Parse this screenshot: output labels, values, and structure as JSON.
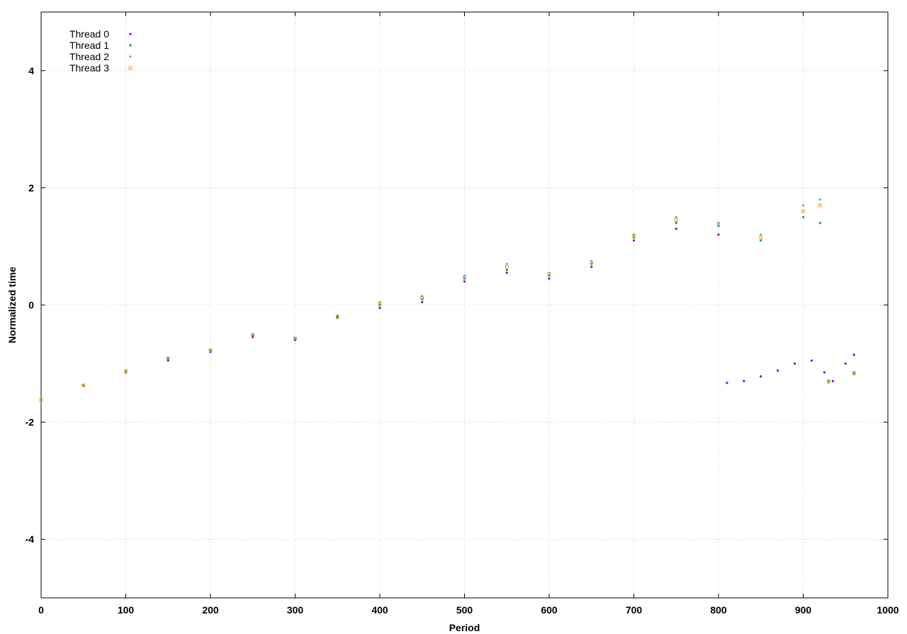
{
  "chart_data": {
    "type": "scatter",
    "title": "",
    "xlabel": "Period",
    "ylabel": "Normalized time",
    "xlim": [
      0,
      1000
    ],
    "ylim": [
      -5,
      5
    ],
    "x_ticks": [
      0,
      100,
      200,
      300,
      400,
      500,
      600,
      700,
      800,
      900,
      1000
    ],
    "y_ticks": [
      -4,
      -2,
      0,
      2,
      4
    ],
    "grid": true,
    "legend_position": "top-left",
    "series": [
      {
        "name": "Thread 0",
        "color": "#9400d3",
        "marker": "dot",
        "points": [
          [
            0,
            -1.62
          ],
          [
            50,
            -1.38
          ],
          [
            100,
            -1.15
          ],
          [
            150,
            -0.95
          ],
          [
            200,
            -0.8
          ],
          [
            250,
            -0.55
          ],
          [
            300,
            -0.6
          ],
          [
            350,
            -0.2
          ],
          [
            400,
            -0.05
          ],
          [
            450,
            0.05
          ],
          [
            500,
            0.4
          ],
          [
            550,
            0.55
          ],
          [
            600,
            0.45
          ],
          [
            650,
            0.65
          ],
          [
            700,
            1.1
          ],
          [
            750,
            1.3
          ],
          [
            800,
            1.2
          ],
          [
            810,
            -1.33
          ],
          [
            830,
            -1.3
          ],
          [
            850,
            -1.22
          ],
          [
            870,
            -1.12
          ],
          [
            890,
            -1.0
          ],
          [
            910,
            -0.95
          ],
          [
            925,
            -1.15
          ],
          [
            935,
            -1.3
          ],
          [
            950,
            -1.0
          ],
          [
            960,
            -0.85
          ]
        ]
      },
      {
        "name": "Thread 1",
        "color": "#009e73",
        "marker": "dot",
        "points": [
          [
            0,
            -1.63
          ],
          [
            50,
            -1.38
          ],
          [
            100,
            -1.14
          ],
          [
            150,
            -0.92
          ],
          [
            200,
            -0.78
          ],
          [
            250,
            -0.52
          ],
          [
            300,
            -0.58
          ],
          [
            350,
            -0.22
          ],
          [
            400,
            0.0
          ],
          [
            450,
            0.1
          ],
          [
            500,
            0.45
          ],
          [
            550,
            0.6
          ],
          [
            600,
            0.5
          ],
          [
            650,
            0.7
          ],
          [
            700,
            1.15
          ],
          [
            750,
            1.4
          ],
          [
            800,
            1.35
          ],
          [
            850,
            1.1
          ],
          [
            900,
            1.5
          ],
          [
            920,
            1.4
          ],
          [
            930,
            -1.32
          ],
          [
            960,
            -1.18
          ]
        ]
      },
      {
        "name": "Thread 2",
        "color": "#56b4e9",
        "marker": "dot",
        "points": [
          [
            0,
            -1.62
          ],
          [
            50,
            -1.37
          ],
          [
            100,
            -1.13
          ],
          [
            150,
            -0.9
          ],
          [
            200,
            -0.76
          ],
          [
            250,
            -0.5
          ],
          [
            300,
            -0.56
          ],
          [
            350,
            -0.18
          ],
          [
            400,
            0.05
          ],
          [
            450,
            0.15
          ],
          [
            500,
            0.5
          ],
          [
            550,
            0.7
          ],
          [
            600,
            0.55
          ],
          [
            650,
            0.75
          ],
          [
            700,
            1.2
          ],
          [
            750,
            1.5
          ],
          [
            800,
            1.4
          ],
          [
            850,
            1.2
          ],
          [
            900,
            1.7
          ],
          [
            920,
            1.8
          ],
          [
            930,
            -1.3
          ],
          [
            960,
            -1.15
          ]
        ]
      },
      {
        "name": "Thread 3",
        "color": "#e69f00",
        "marker": "square",
        "points": [
          [
            0,
            -1.62
          ],
          [
            50,
            -1.37
          ],
          [
            100,
            -1.13
          ],
          [
            150,
            -0.91
          ],
          [
            200,
            -0.77
          ],
          [
            250,
            -0.51
          ],
          [
            300,
            -0.57
          ],
          [
            350,
            -0.2
          ],
          [
            400,
            0.02
          ],
          [
            450,
            0.12
          ],
          [
            500,
            0.48
          ],
          [
            550,
            0.65
          ],
          [
            600,
            0.52
          ],
          [
            650,
            0.72
          ],
          [
            700,
            1.18
          ],
          [
            750,
            1.45
          ],
          [
            800,
            1.38
          ],
          [
            850,
            1.15
          ],
          [
            900,
            1.6
          ],
          [
            920,
            1.7
          ],
          [
            930,
            -1.3
          ],
          [
            960,
            -1.16
          ]
        ]
      }
    ]
  }
}
